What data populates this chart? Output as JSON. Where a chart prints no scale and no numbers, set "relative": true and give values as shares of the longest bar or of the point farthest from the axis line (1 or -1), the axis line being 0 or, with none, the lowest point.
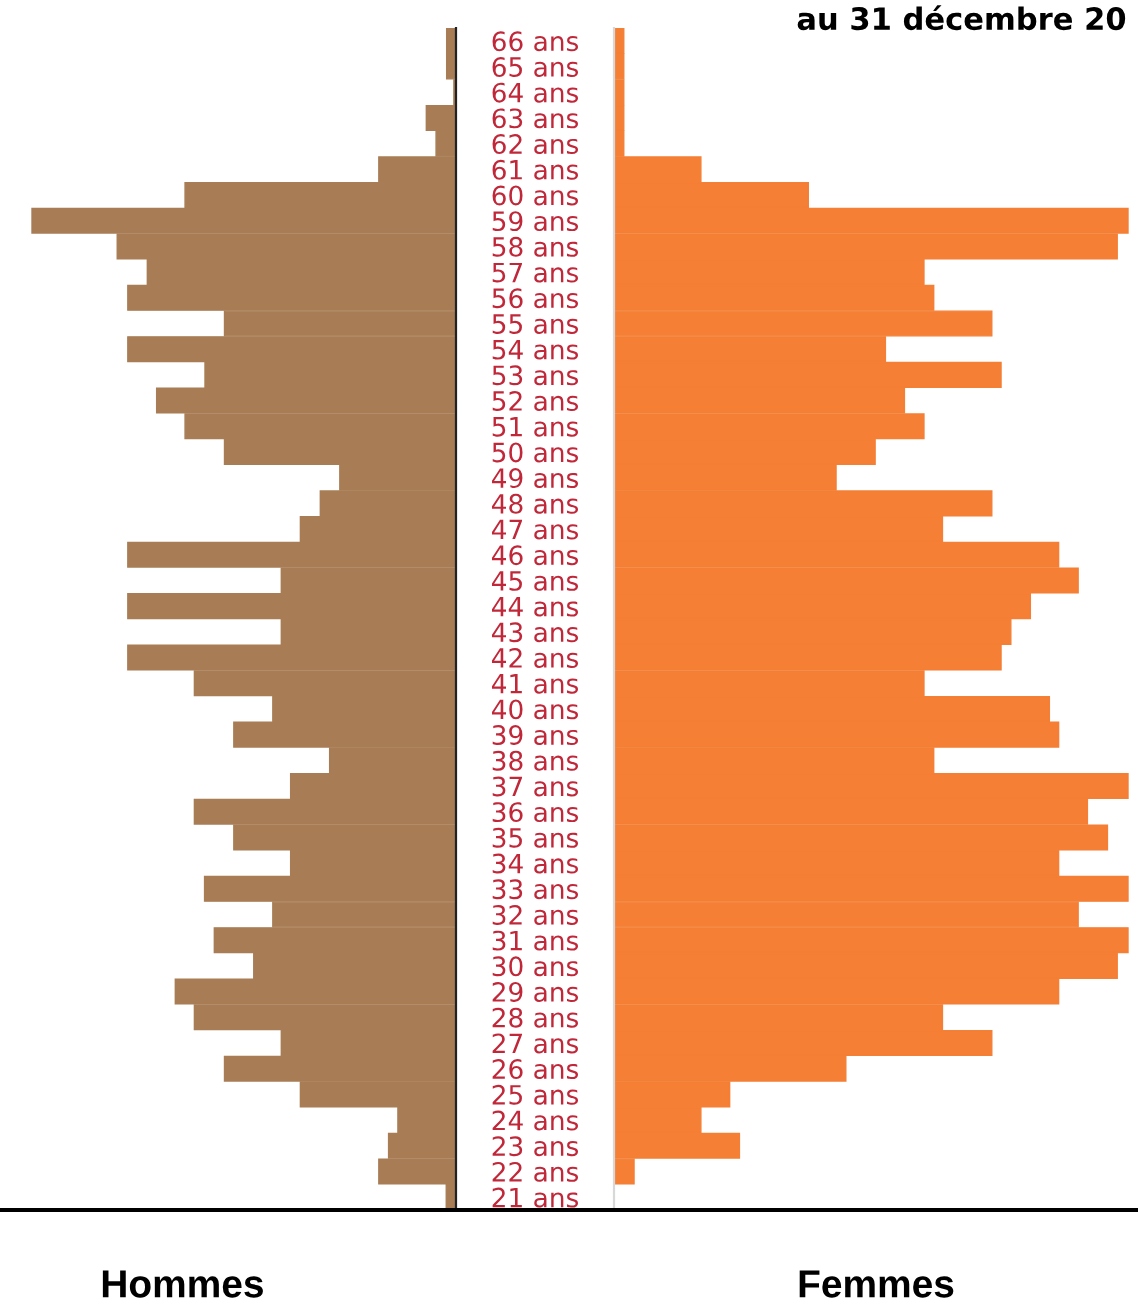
{
  "chart_data": [
    {
      "type": "bar",
      "orientation": "horizontal",
      "relative": true,
      "xlabel": "Hommes",
      "color": "#a87d55",
      "grid": false,
      "categories": [
        "66 ans",
        "65 ans",
        "64 ans",
        "63 ans",
        "62 ans",
        "61 ans",
        "60 ans",
        "59 ans",
        "58 ans",
        "57 ans",
        "56 ans",
        "55 ans",
        "54 ans",
        "53 ans",
        "52 ans",
        "51 ans",
        "50 ans",
        "49 ans",
        "48 ans",
        "47 ans",
        "46 ans",
        "45 ans",
        "44 ans",
        "43 ans",
        "42 ans",
        "41 ans",
        "40 ans",
        "39 ans",
        "38 ans",
        "37 ans",
        "36 ans",
        "35 ans",
        "34 ans",
        "33 ans",
        "32 ans",
        "31 ans",
        "30 ans",
        "29 ans",
        "28 ans",
        "27 ans",
        "26 ans",
        "25 ans",
        "24 ans",
        "23 ans",
        "22 ans",
        "21 ans"
      ],
      "values": [
        0.022,
        0.022,
        0.005,
        0.07,
        0.047,
        0.182,
        0.639,
        1,
        0.799,
        0.728,
        0.774,
        0.546,
        0.774,
        0.592,
        0.706,
        0.639,
        0.546,
        0.274,
        0.32,
        0.367,
        0.774,
        0.412,
        0.774,
        0.412,
        0.774,
        0.617,
        0.432,
        0.524,
        0.298,
        0.39,
        0.617,
        0.524,
        0.39,
        0.593,
        0.432,
        0.57,
        0.477,
        0.662,
        0.617,
        0.412,
        0.546,
        0.367,
        0.137,
        0.159,
        0.182,
        0.023
      ]
    },
    {
      "type": "bar",
      "orientation": "horizontal",
      "relative": true,
      "title": "au 31 décembre 20",
      "xlabel": "Femmes",
      "color": "#f47f35",
      "grid": false,
      "categories": [
        null,
        null,
        null,
        null,
        null,
        null,
        null,
        null,
        null,
        null,
        null,
        null,
        null,
        null,
        null,
        null,
        null,
        null,
        null,
        null,
        null,
        null,
        null,
        null,
        null,
        null,
        null,
        null,
        null,
        null,
        null,
        null,
        null,
        null,
        null,
        null,
        null,
        null,
        null,
        null,
        null,
        null,
        null,
        null,
        null,
        null
      ],
      "values": [
        0.019,
        0.019,
        0.019,
        0.019,
        0.019,
        0.169,
        0.378,
        1,
        0.979,
        0.603,
        0.622,
        0.735,
        0.528,
        0.753,
        0.565,
        0.603,
        0.508,
        0.432,
        0.735,
        0.639,
        0.865,
        0.903,
        0.81,
        0.772,
        0.753,
        0.603,
        0.847,
        0.865,
        0.622,
        1,
        0.921,
        0.96,
        0.865,
        1,
        0.903,
        1,
        0.979,
        0.865,
        0.639,
        0.735,
        0.451,
        0.225,
        0.169,
        0.244,
        0.039,
        0
      ]
    }
  ]
}
